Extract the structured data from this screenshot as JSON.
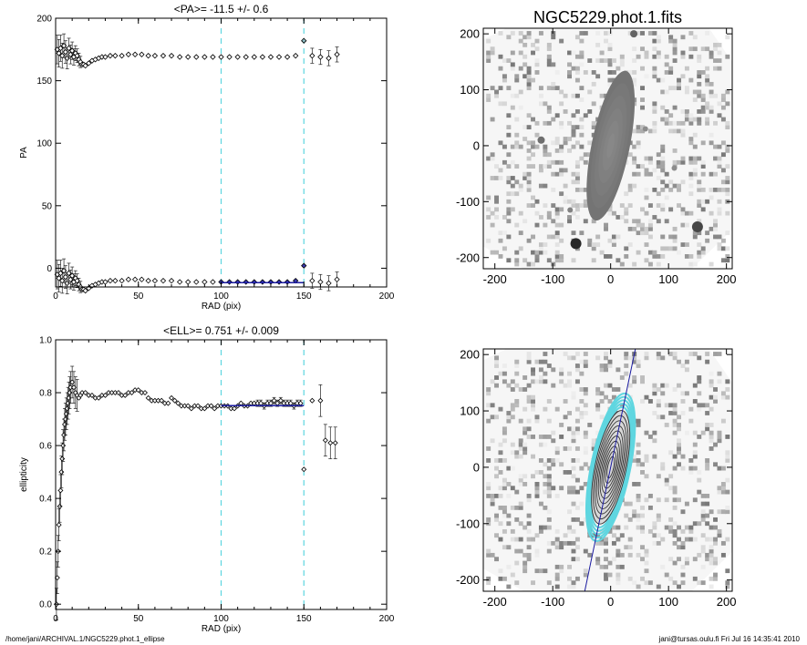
{
  "footer": {
    "left": "/home/jani/ARCHIVAL.1/NGC5229.phot.1_ellipse",
    "right": "jani@tursas.oulu.fi  Fri Jul 16 14:35:41 2010"
  },
  "colors": {
    "fit": "#1a1aa0",
    "guide": "#5fd6e0",
    "marker": "#000000"
  },
  "chart_data": [
    {
      "type": "scatter",
      "title": "<PA>= -11.5 +/-   0.6",
      "xlabel": "RAD (pix)",
      "ylabel": "PA",
      "xlim": [
        0,
        200
      ],
      "ylim": [
        -15,
        200
      ],
      "xticks": [
        0,
        50,
        100,
        150,
        200
      ],
      "yticks": [
        0,
        50,
        100,
        150,
        200
      ],
      "vlines": [
        100,
        150
      ],
      "fit": {
        "x": [
          100,
          150
        ],
        "y": [
          -11.5,
          -11.5
        ]
      },
      "upper": {
        "x": [
          1,
          2,
          3,
          4,
          5,
          6,
          7,
          8,
          9,
          10,
          11,
          12,
          13,
          14,
          15,
          16,
          17,
          18,
          20,
          22,
          24,
          26,
          28,
          30,
          33,
          36,
          40,
          44,
          48,
          52,
          56,
          60,
          65,
          70,
          75,
          80,
          85,
          90,
          95,
          100,
          105,
          110,
          115,
          120,
          125,
          130,
          135,
          140,
          145,
          150,
          155,
          160,
          165,
          170
        ],
        "y": [
          175,
          172,
          176,
          170,
          178,
          173,
          168,
          176,
          171,
          174,
          169,
          172,
          170,
          167,
          165,
          163,
          163,
          162,
          164,
          166,
          167,
          168,
          169,
          169,
          170,
          170,
          170,
          171,
          171,
          171,
          170,
          170,
          170,
          170,
          169,
          169,
          169,
          169,
          169,
          169,
          169,
          169,
          169,
          169,
          169,
          169,
          169,
          169,
          170,
          182,
          170,
          169,
          168,
          171
        ]
      },
      "lower": {
        "x": [
          1,
          2,
          3,
          4,
          5,
          6,
          7,
          8,
          9,
          10,
          11,
          12,
          13,
          14,
          15,
          16,
          17,
          18,
          20,
          22,
          24,
          26,
          28,
          30,
          33,
          36,
          40,
          44,
          48,
          52,
          56,
          60,
          65,
          70,
          75,
          80,
          85,
          90,
          95,
          100,
          105,
          110,
          115,
          120,
          125,
          130,
          135,
          140,
          145,
          150,
          155,
          160,
          165,
          170
        ],
        "y": [
          -5,
          -8,
          -4,
          -10,
          -2,
          -7,
          -12,
          -4,
          -9,
          -6,
          -11,
          -8,
          -10,
          -13,
          -15,
          -17,
          -17,
          -18,
          -16,
          -14,
          -13,
          -12,
          -11,
          -11,
          -10,
          -10,
          -10,
          -9,
          -9,
          -9,
          -10,
          -10,
          -10,
          -10,
          -11,
          -11,
          -11,
          -11,
          -11,
          -11,
          -11,
          -11,
          -11,
          -11,
          -11,
          -11,
          -11,
          -11,
          -10,
          2,
          -10,
          -11,
          -12,
          -9
        ]
      }
    },
    {
      "type": "scatter",
      "title": "<ELL>= 0.751 +/-  0.009",
      "xlabel": "RAD (pix)",
      "ylabel": "ellipticity",
      "xlim": [
        0,
        200
      ],
      "ylim": [
        -0.02,
        1.0
      ],
      "xticks": [
        0,
        50,
        100,
        150,
        200
      ],
      "yticks": [
        0.0,
        0.2,
        0.4,
        0.6,
        0.8,
        1.0
      ],
      "vlines": [
        100,
        150
      ],
      "fit": {
        "x": [
          100,
          150
        ],
        "y": [
          0.751,
          0.751
        ]
      },
      "series": {
        "x": [
          0.5,
          1,
          1.5,
          2,
          2.5,
          3,
          3.5,
          4,
          4.5,
          5,
          5.5,
          6,
          6.5,
          7,
          7.5,
          8,
          8.5,
          9,
          10,
          11,
          12,
          13,
          14,
          15,
          16,
          18,
          20,
          22,
          24,
          26,
          28,
          30,
          32,
          34,
          36,
          38,
          40,
          42,
          44,
          46,
          48,
          50,
          52,
          54,
          56,
          58,
          60,
          62,
          64,
          66,
          68,
          70,
          72,
          74,
          76,
          78,
          80,
          82,
          84,
          86,
          88,
          90,
          92,
          94,
          96,
          98,
          100,
          102,
          104,
          106,
          108,
          110,
          112,
          114,
          116,
          118,
          120,
          122,
          124,
          126,
          128,
          130,
          132,
          134,
          136,
          138,
          140,
          142,
          144,
          146,
          148,
          150,
          155,
          160,
          163,
          166,
          169
        ],
        "y": [
          0.0,
          0.1,
          0.2,
          0.3,
          0.37,
          0.43,
          0.5,
          0.55,
          0.6,
          0.64,
          0.68,
          0.7,
          0.72,
          0.74,
          0.76,
          0.78,
          0.8,
          0.82,
          0.84,
          0.82,
          0.8,
          0.79,
          0.78,
          0.79,
          0.8,
          0.8,
          0.79,
          0.79,
          0.78,
          0.78,
          0.79,
          0.79,
          0.8,
          0.8,
          0.8,
          0.8,
          0.79,
          0.79,
          0.8,
          0.8,
          0.81,
          0.81,
          0.8,
          0.8,
          0.78,
          0.77,
          0.77,
          0.77,
          0.77,
          0.76,
          0.76,
          0.78,
          0.77,
          0.76,
          0.75,
          0.75,
          0.75,
          0.74,
          0.75,
          0.75,
          0.74,
          0.74,
          0.75,
          0.75,
          0.74,
          0.75,
          0.75,
          0.75,
          0.75,
          0.74,
          0.74,
          0.75,
          0.76,
          0.75,
          0.75,
          0.76,
          0.76,
          0.76,
          0.76,
          0.75,
          0.76,
          0.76,
          0.77,
          0.76,
          0.77,
          0.76,
          0.76,
          0.76,
          0.75,
          0.76,
          0.76,
          0.51,
          0.77,
          0.77,
          0.62,
          0.61,
          0.61
        ]
      }
    },
    {
      "type": "heatmap",
      "title": "NGC5229.phot.1.fits",
      "xlim": [
        -220,
        210
      ],
      "ylim": [
        -220,
        210
      ],
      "xticks": [
        -200,
        -100,
        0,
        100,
        200
      ],
      "yticks": [
        -200,
        -100,
        0,
        100,
        200
      ],
      "galaxy": {
        "center": [
          0,
          0
        ],
        "pa_deg": -11.5,
        "ell": 0.751
      }
    },
    {
      "type": "heatmap",
      "title": "",
      "xlim": [
        -220,
        210
      ],
      "ylim": [
        -220,
        210
      ],
      "xticks": [
        -200,
        -100,
        0,
        100,
        200
      ],
      "yticks": [
        -200,
        -100,
        0,
        100,
        200
      ],
      "major_axis_line": true,
      "contours": "ellipses"
    }
  ]
}
